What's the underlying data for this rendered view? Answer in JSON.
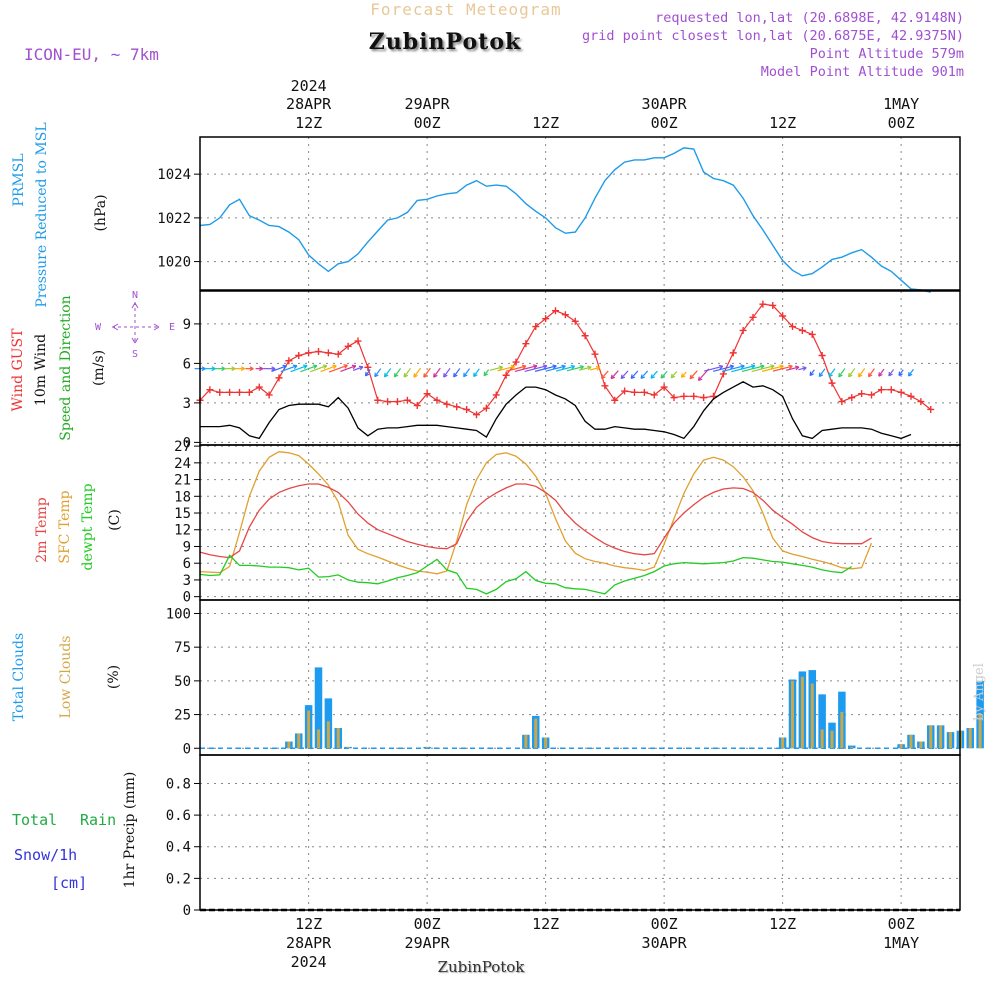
{
  "header": {
    "product_title": "Forecast Meteogram",
    "location": "ZubinPotok",
    "model": "ICON-EU, ~ 7km",
    "requested": "requested lon,lat (20.6898E, 42.9148N)",
    "closest": "grid point closest lon,lat (20.6875E, 42.9375N)",
    "point_altitude": "Point Altitude 579m",
    "model_altitude": "Model Point Altitude 901m",
    "credit": "by Angel",
    "footer_location": "ZubinPotok"
  },
  "colors": {
    "pressure": "#1e9be8",
    "gust": "#ee3333",
    "wind": "#000000",
    "t2m": "#e64646",
    "sfc": "#e0a030",
    "dew": "#22cc22",
    "clouds_total": "#1d9bf0",
    "clouds_low": "#c9a84a",
    "rain": "#22aa44",
    "snow": "#3333dd",
    "model": "#a050d0"
  },
  "time_axis": {
    "top_labels": [
      {
        "h": 12,
        "l1": "2024",
        "l2": "28APR",
        "l3": "12Z"
      },
      {
        "h": 24,
        "l1": "",
        "l2": "29APR",
        "l3": "00Z"
      },
      {
        "h": 36,
        "l1": "",
        "l2": "",
        "l3": "12Z"
      },
      {
        "h": 48,
        "l1": "",
        "l2": "30APR",
        "l3": "00Z"
      },
      {
        "h": 60,
        "l1": "",
        "l2": "",
        "l3": "12Z"
      },
      {
        "h": 72,
        "l1": "",
        "l2": "1MAY",
        "l3": "00Z"
      }
    ],
    "bottom_labels": [
      {
        "h": 12,
        "l1": "12Z",
        "l2": "28APR",
        "l3": "2024"
      },
      {
        "h": 24,
        "l1": "00Z",
        "l2": "29APR",
        "l3": ""
      },
      {
        "h": 36,
        "l1": "12Z",
        "l2": "",
        "l3": ""
      },
      {
        "h": 48,
        "l1": "00Z",
        "l2": "30APR",
        "l3": ""
      },
      {
        "h": 60,
        "l1": "12Z",
        "l2": "",
        "l3": ""
      },
      {
        "h": 72,
        "l1": "00Z",
        "l2": "1MAY",
        "l3": ""
      }
    ]
  },
  "labels": {
    "pressure": [
      "PRMSL",
      "Pressure Reduced to MSL"
    ],
    "pressure_unit": "(hPa)",
    "wind_gust": "Wind GUST",
    "wind_10m": "10m Wind",
    "wind_dir": "Speed and Direction",
    "wind_unit": "(m/s)",
    "compass_n": "N",
    "compass_s": "S",
    "compass_e": "E",
    "compass_w": "W",
    "temp_2m": "2m Temp",
    "temp_sfc": "SFC Temp",
    "temp_dew": "dewpt Temp",
    "temp_unit": "(C)",
    "clouds_total": "Total Clouds",
    "clouds_low": "Low Clouds",
    "clouds_unit": "(%)",
    "precip_total": "Total",
    "precip_rain": "Rain",
    "precip_snow": "Snow/1h",
    "precip_snow_unit": "[cm]",
    "precip_axis": "1hr Precip (mm)"
  },
  "chart_data": [
    {
      "type": "line",
      "title": "PRMSL Pressure Reduced to MSL",
      "ylabel": "(hPa)",
      "x_start_hour": 1,
      "x_end_hour": 77,
      "ylim": [
        1018.7,
        1025.7
      ],
      "yticks": [
        1020,
        1022,
        1024
      ],
      "series": [
        {
          "name": "PRMSL",
          "values": [
            1021.65,
            1021.7,
            1022.0,
            1022.6,
            1022.85,
            1022.1,
            1021.9,
            1021.65,
            1021.6,
            1021.35,
            1021.0,
            1020.3,
            1019.9,
            1019.55,
            1019.9,
            1020.0,
            1020.35,
            1020.9,
            1021.4,
            1021.9,
            1022.0,
            1022.25,
            1022.8,
            1022.85,
            1023.0,
            1023.1,
            1023.15,
            1023.5,
            1023.7,
            1023.45,
            1023.5,
            1023.45,
            1023.1,
            1022.65,
            1022.3,
            1022.0,
            1021.55,
            1021.3,
            1021.35,
            1022.0,
            1022.9,
            1023.7,
            1024.2,
            1024.55,
            1024.65,
            1024.65,
            1024.75,
            1024.75,
            1024.95,
            1025.2,
            1025.15,
            1024.1,
            1023.8,
            1023.7,
            1023.5,
            1022.9,
            1022.1,
            1021.45,
            1020.75,
            1020.05,
            1019.6,
            1019.35,
            1019.45,
            1019.75,
            1020.1,
            1020.2,
            1020.4,
            1020.55,
            1020.2,
            1019.8,
            1019.55,
            1019.15,
            1018.75,
            1018.7,
            1018.6
          ]
        }
      ]
    },
    {
      "type": "line",
      "title": "Wind GUST / 10m Wind",
      "ylabel": "(m/s)",
      "ylim": [
        -0.2,
        11.5
      ],
      "yticks": [
        0,
        3,
        6,
        9
      ],
      "series": [
        {
          "name": "Wind GUST",
          "values": [
            3.2,
            4,
            3.8,
            3.8,
            3.8,
            3.8,
            4.2,
            3.6,
            4.9,
            6.2,
            6.6,
            6.8,
            6.9,
            6.8,
            6.7,
            7.3,
            7.7,
            5.7,
            3.2,
            3.1,
            3.1,
            3.2,
            2.8,
            3.7,
            3.2,
            2.9,
            2.7,
            2.5,
            2.1,
            2.6,
            3.6,
            5.1,
            6.1,
            7.5,
            8.8,
            9.4,
            10,
            9.7,
            9.2,
            8.1,
            6.7,
            4.3,
            3.2,
            3.9,
            3.8,
            3.8,
            3.6,
            4.2,
            3.4,
            3.5,
            3.5,
            3.4,
            3.5,
            5.2,
            6.8,
            8.5,
            9.5,
            10.5,
            10.4,
            9.6,
            8.8,
            8.5,
            8.2,
            6.6,
            4.5,
            3.1,
            3.4,
            3.7,
            3.6,
            4,
            4,
            3.8,
            3.5,
            3.1,
            2.5
          ]
        },
        {
          "name": "10m Wind",
          "values": [
            1.2,
            1.2,
            1.2,
            1.3,
            1.1,
            0.5,
            0.3,
            1.5,
            2.5,
            2.8,
            2.9,
            2.9,
            2.9,
            2.7,
            3.4,
            2.6,
            1.1,
            0.5,
            1.0,
            1.1,
            1.1,
            1.2,
            1.3,
            1.3,
            1.3,
            1.2,
            1.1,
            1.0,
            0.9,
            0.4,
            1.8,
            2.9,
            3.6,
            4.2,
            4.2,
            4.0,
            3.6,
            3.3,
            2.8,
            1.6,
            1.0,
            1.0,
            1.2,
            1.1,
            1.0,
            1.0,
            0.9,
            0.8,
            0.6,
            0.3,
            1.2,
            2.4,
            3.3,
            3.8,
            4.2,
            4.6,
            4.2,
            4.3,
            4.0,
            3.5,
            1.8,
            0.5,
            0.3,
            0.9,
            1.0,
            1.1,
            1.1,
            1.1,
            1.0,
            0.7,
            0.5,
            0.3,
            0.6
          ]
        }
      ]
    },
    {
      "type": "line",
      "title": "2m Temp / SFC Temp / dewpt Temp",
      "ylabel": "(C)",
      "ylim": [
        -0.6,
        27.2
      ],
      "yticks": [
        0,
        3,
        6,
        9,
        12,
        15,
        18,
        21,
        24,
        27
      ],
      "series": [
        {
          "name": "2m Temp",
          "values": [
            8,
            7.5,
            7.2,
            7,
            8.2,
            12.5,
            15.5,
            17.5,
            18.7,
            19.4,
            19.9,
            20.2,
            20.2,
            19.6,
            18.7,
            17,
            14.8,
            13.2,
            12,
            11.3,
            10.6,
            9.9,
            9.4,
            9,
            8.7,
            8.6,
            9.5,
            13.5,
            16,
            17.5,
            18.6,
            19.5,
            20.2,
            20.2,
            19.8,
            18.7,
            17.3,
            15,
            13.2,
            11.8,
            10.6,
            9.5,
            8.7,
            8.1,
            7.7,
            7.5,
            7.7,
            10.5,
            13.2,
            15,
            16.5,
            17.8,
            18.7,
            19.3,
            19.5,
            19.4,
            18.7,
            17.3,
            15.5,
            14.2,
            13,
            11.6,
            10.6,
            9.9,
            9.6,
            9.5,
            9.5,
            9.5,
            10.5
          ]
        },
        {
          "name": "SFC Temp",
          "values": [
            4.5,
            4.4,
            4.3,
            5.4,
            11.5,
            18,
            22.5,
            25,
            26,
            25.8,
            25.3,
            23.8,
            22,
            20,
            17,
            11,
            8.5,
            7.7,
            7.1,
            6.4,
            5.7,
            5.1,
            4.6,
            4.4,
            4.1,
            4.6,
            10,
            16.5,
            21,
            24,
            25.5,
            25.8,
            25.2,
            23.8,
            21.6,
            18.5,
            14,
            10,
            7.8,
            6.8,
            6.3,
            6,
            5.5,
            5.2,
            5,
            4.7,
            5.3,
            9.4,
            14,
            18.5,
            22,
            24.5,
            25,
            24.5,
            23.3,
            21.5,
            19,
            15,
            10.5,
            8.2,
            7.6,
            7.2,
            6.7,
            6.3,
            5.8,
            5.2,
            5,
            5.2,
            9.6
          ]
        },
        {
          "name": "dewpt Temp",
          "values": [
            4,
            3.8,
            3.9,
            7.4,
            5.6,
            5.6,
            5.5,
            5.3,
            5.3,
            5.2,
            4.8,
            5.1,
            3.5,
            3.6,
            3.9,
            3,
            2.6,
            2.5,
            2.3,
            2.8,
            3.4,
            3.8,
            4.3,
            5.5,
            6.7,
            4.8,
            4.2,
            1.5,
            1.3,
            0.5,
            1.3,
            2.7,
            3.2,
            4.5,
            2.9,
            2.4,
            2.3,
            1.6,
            1.4,
            1.3,
            0.9,
            0.5,
            2.1,
            2.8,
            3.3,
            3.8,
            4.5,
            5.5,
            5.9,
            6.1,
            6,
            5.9,
            6,
            6.1,
            6.4,
            7,
            6.9,
            6.6,
            6.3,
            6.2,
            5.9,
            5.6,
            5.3,
            4.8,
            4.5,
            4.3,
            5.4
          ]
        }
      ]
    },
    {
      "type": "bar",
      "title": "Total Clouds / Low Clouds",
      "ylabel": "(%)",
      "ylim": [
        -5,
        110
      ],
      "yticks": [
        0,
        25,
        50,
        75,
        100
      ],
      "series": [
        {
          "name": "Total Clouds",
          "hours": [
            10,
            11,
            12,
            13,
            14,
            15,
            16,
            24,
            34,
            35,
            36,
            60,
            61,
            62,
            63,
            64,
            65,
            66,
            67,
            72,
            73,
            74,
            75,
            76,
            77,
            78,
            79,
            80
          ],
          "values": [
            5,
            11,
            32,
            60,
            37,
            15,
            1,
            1,
            10,
            24,
            8,
            8,
            51,
            57,
            58,
            40,
            19,
            42,
            2,
            3,
            10,
            5,
            17,
            17,
            12,
            13,
            15,
            50
          ]
        },
        {
          "name": "Low Clouds",
          "hours": [
            10,
            11,
            12,
            13,
            14,
            15,
            16,
            24,
            34,
            35,
            36,
            60,
            61,
            62,
            63,
            64,
            65,
            66,
            67,
            72,
            73,
            74,
            75,
            76,
            77,
            78,
            79,
            80
          ],
          "values": [
            5,
            11,
            28,
            14,
            20,
            15,
            1,
            1,
            10,
            22,
            8,
            8,
            50,
            53,
            48,
            14,
            13,
            27,
            1,
            3,
            10,
            5,
            17,
            17,
            12,
            13,
            15,
            25
          ]
        }
      ]
    },
    {
      "type": "bar",
      "title": "1hr Precip (mm)",
      "ylabel": "1hr Precip (mm)",
      "ylim": [
        0,
        0.98
      ],
      "yticks": [
        0,
        0.2,
        0.4,
        0.6,
        0.8
      ],
      "series": [
        {
          "name": "Total Rain",
          "values": []
        },
        {
          "name": "Snow/1h",
          "values": []
        }
      ]
    }
  ]
}
